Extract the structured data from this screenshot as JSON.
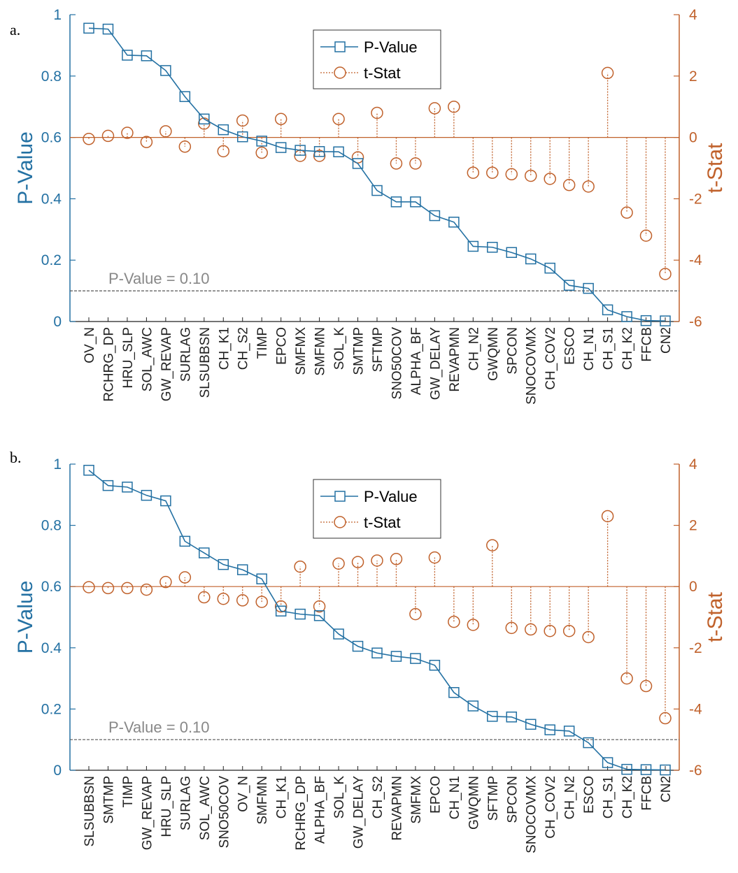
{
  "colors": {
    "p_value": "#2471a3",
    "t_stat": "#c0612b",
    "ref_line": "#555555",
    "ref_text": "#888888"
  },
  "chart_data": [
    {
      "type": "line",
      "panel_label": "a.",
      "categories": [
        "OV_N",
        "RCHRG_DP",
        "HRU_SLP",
        "SOL_AWC",
        "GW_REVAP",
        "SURLAG",
        "SLSUBBSN",
        "CH_K1",
        "CH_S2",
        "TIMP",
        "EPCO",
        "SMFMX",
        "SMFMN",
        "SOL_K",
        "SMTMP",
        "SFTMP",
        "SNO50COV",
        "ALPHA_BF",
        "GW_DELAY",
        "REVAPMN",
        "CH_N2",
        "GWQMN",
        "SPCON",
        "SNOCOVMX",
        "CH_COV2",
        "ESCO",
        "CH_N1",
        "CH_S1",
        "CH_K2",
        "FFCB",
        "CN2"
      ],
      "ylabel": "P-Value",
      "y2label": "t-Stat",
      "ylim": [
        0,
        1
      ],
      "y2lim": [
        -6,
        4
      ],
      "yticks": [
        "0",
        "0.2",
        "0.4",
        "0.6",
        "0.8",
        "1"
      ],
      "y2ticks": [
        "-6",
        "-4",
        "-2",
        "0",
        "2",
        "4"
      ],
      "reference_line": {
        "value": 0.1,
        "label": "P-Value = 0.10"
      },
      "legend": {
        "position": "top-center",
        "entries": [
          "P-Value",
          "t-Stat"
        ]
      },
      "series": [
        {
          "name": "P-Value",
          "style": "line-square",
          "values": [
            0.956,
            0.953,
            0.868,
            0.866,
            0.818,
            0.733,
            0.66,
            0.625,
            0.602,
            0.588,
            0.567,
            0.558,
            0.554,
            0.553,
            0.515,
            0.427,
            0.39,
            0.39,
            0.345,
            0.324,
            0.245,
            0.242,
            0.225,
            0.204,
            0.174,
            0.118,
            0.108,
            0.038,
            0.016,
            0.003,
            0.002
          ]
        },
        {
          "name": "t-Stat",
          "style": "stem-circle",
          "values": [
            -0.05,
            0.05,
            0.15,
            -0.15,
            0.2,
            -0.3,
            0.45,
            -0.45,
            0.55,
            -0.5,
            0.6,
            -0.6,
            -0.6,
            0.6,
            -0.65,
            0.8,
            -0.85,
            -0.85,
            0.95,
            1.0,
            -1.15,
            -1.15,
            -1.2,
            -1.25,
            -1.35,
            -1.55,
            -1.6,
            2.1,
            -2.45,
            -3.2,
            -4.45
          ]
        }
      ]
    },
    {
      "type": "line",
      "panel_label": "b.",
      "categories": [
        "SLSUBBSN",
        "SMTMP",
        "TIMP",
        "GW_REVAP",
        "HRU_SLP",
        "SURLAG",
        "SOL_AWC",
        "SNO50COV",
        "OV_N",
        "SMFMN",
        "CH_K1",
        "RCHRG_DP",
        "ALPHA_BF",
        "SOL_K",
        "GW_DELAY",
        "CH_S2",
        "REVAPMN",
        "SMFMX",
        "EPCO",
        "CH_N1",
        "GWQMN",
        "SFTMP",
        "SPCON",
        "SNOCOVMX",
        "CH_COV2",
        "CH_N2",
        "ESCO",
        "CH_S1",
        "CH_K2",
        "FFCB",
        "CN2"
      ],
      "ylabel": "P-Value",
      "y2label": "t-Stat",
      "ylim": [
        0,
        1
      ],
      "y2lim": [
        -6,
        4
      ],
      "yticks": [
        "0",
        "0.2",
        "0.4",
        "0.6",
        "0.8",
        "1"
      ],
      "y2ticks": [
        "-6",
        "-4",
        "-2",
        "0",
        "2",
        "4"
      ],
      "reference_line": {
        "value": 0.1,
        "label": "P-Value = 0.10"
      },
      "legend": {
        "position": "top-center",
        "entries": [
          "P-Value",
          "t-Stat"
        ]
      },
      "series": [
        {
          "name": "P-Value",
          "style": "line-square",
          "values": [
            0.98,
            0.93,
            0.925,
            0.898,
            0.88,
            0.748,
            0.71,
            0.672,
            0.655,
            0.625,
            0.52,
            0.51,
            0.505,
            0.445,
            0.405,
            0.383,
            0.372,
            0.365,
            0.343,
            0.254,
            0.21,
            0.176,
            0.174,
            0.15,
            0.132,
            0.128,
            0.09,
            0.025,
            0.003,
            0.002,
            0.001
          ]
        },
        {
          "name": "t-Stat",
          "style": "stem-circle",
          "values": [
            -0.02,
            -0.05,
            -0.05,
            -0.1,
            0.15,
            0.3,
            -0.35,
            -0.4,
            -0.45,
            -0.5,
            -0.65,
            0.65,
            -0.65,
            0.75,
            0.8,
            0.85,
            0.9,
            -0.9,
            0.95,
            -1.15,
            -1.25,
            1.35,
            -1.35,
            -1.4,
            -1.45,
            -1.45,
            -1.65,
            2.3,
            -3.0,
            -3.25,
            -4.3
          ]
        }
      ]
    }
  ]
}
